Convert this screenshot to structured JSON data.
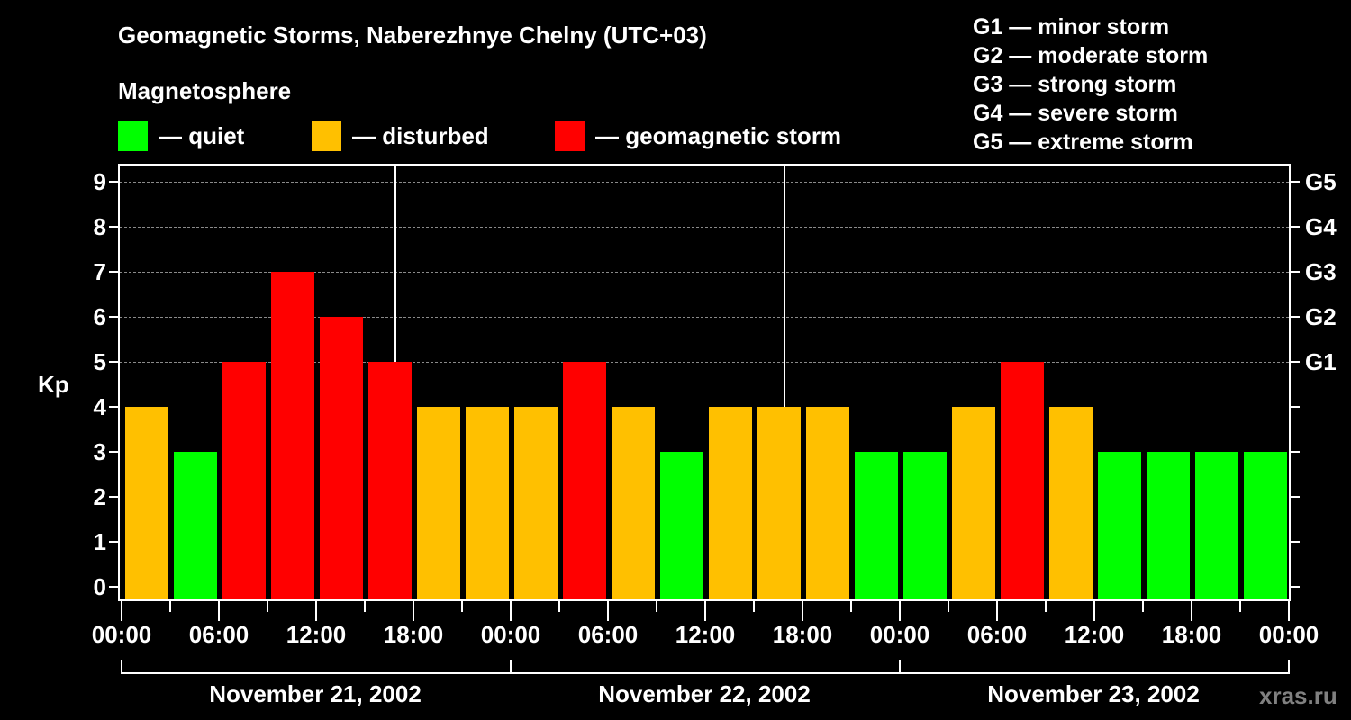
{
  "header": {
    "title": "Geomagnetic Storms, Naberezhnye Chelny (UTC+03)",
    "subtitle": "Magnetosphere"
  },
  "legend": {
    "quiet": {
      "label": "— quiet",
      "color": "#00ff00"
    },
    "disturbed": {
      "label": "— disturbed",
      "color": "#ffc000"
    },
    "storm": {
      "label": "— geomagnetic storm",
      "color": "#ff0000"
    }
  },
  "g_scale_legend": [
    "G1 — minor storm",
    "G2 — moderate storm",
    "G3 — strong storm",
    "G4 — severe storm",
    "G5 — extreme storm"
  ],
  "watermark": "xras.ru",
  "chart_data": {
    "type": "bar",
    "title": "Geomagnetic Storms, Naberezhnye Chelny (UTC+03)",
    "ylabel": "Kp",
    "xlabel": "",
    "ylim": [
      0,
      9
    ],
    "y_ticks": [
      "0",
      "1",
      "2",
      "3",
      "4",
      "5",
      "6",
      "7",
      "8",
      "9"
    ],
    "right_axis_labels": {
      "5": "G1",
      "6": "G2",
      "7": "G3",
      "8": "G4",
      "9": "G5"
    },
    "x_tick_labels": [
      "00:00",
      "06:00",
      "12:00",
      "18:00",
      "00:00",
      "06:00",
      "12:00",
      "18:00",
      "00:00",
      "06:00",
      "12:00",
      "18:00",
      "00:00"
    ],
    "days": [
      "November 21, 2002",
      "November 22, 2002",
      "November 23, 2002"
    ],
    "grid": "dashed horizontal at 5-9",
    "interval_hours": 3,
    "categories": [
      "Nov 21 00-03",
      "Nov 21 03-06",
      "Nov 21 06-09",
      "Nov 21 09-12",
      "Nov 21 12-15",
      "Nov 21 15-18",
      "Nov 21 18-21",
      "Nov 21 21-24",
      "Nov 22 00-03",
      "Nov 22 03-06",
      "Nov 22 06-09",
      "Nov 22 09-12",
      "Nov 22 12-15",
      "Nov 22 15-18",
      "Nov 22 18-21",
      "Nov 22 21-24",
      "Nov 23 00-03",
      "Nov 23 03-06",
      "Nov 23 06-09",
      "Nov 23 09-12",
      "Nov 23 12-15",
      "Nov 23 15-18",
      "Nov 23 18-21",
      "Nov 23 21-24"
    ],
    "values": [
      4,
      3,
      5,
      7,
      6,
      5,
      4,
      4,
      4,
      5,
      4,
      3,
      4,
      4,
      4,
      3,
      3,
      4,
      5,
      4,
      3,
      3,
      3,
      3
    ],
    "color_rule": {
      "quiet": "Kp<=3 #00ff00",
      "disturbed": "Kp=4 #ffc000",
      "storm": "Kp>=5 #ff0000"
    }
  }
}
